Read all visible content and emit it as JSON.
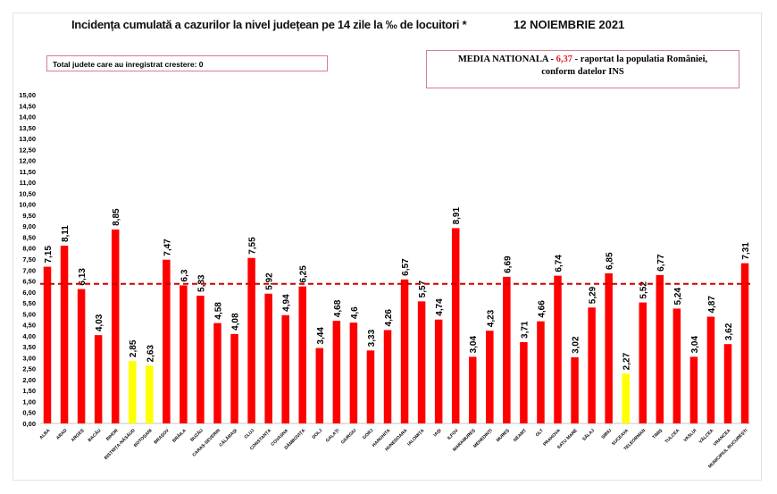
{
  "chart_data": {
    "type": "bar",
    "title": "Incidența cumulată a cazurilor la nivel județean pe 14 zile la ‰ de locuitori *",
    "date": "12 NOIEMBRIE 2021",
    "note": "Total judete care au inregistrat crestere: 0",
    "average_box": {
      "prefix": "MEDIA NATIONALA - ",
      "value": "6,37",
      "suffix": " -  raportat la populatia României,",
      "line2": "conform datelor INS"
    },
    "average_line": 6.37,
    "ylim": [
      0,
      15
    ],
    "ytick_step": 0.5,
    "grid": false,
    "colors": {
      "bar": "#ff0000",
      "highlight": "#ffff00",
      "average_line": "#d00000"
    },
    "categories": [
      "ALBA",
      "ARAD",
      "ARGEȘ",
      "BACĂU",
      "BIHOR",
      "BISTRIȚA-NĂSĂUD",
      "BOTOȘANI",
      "BRAȘOV",
      "BRĂILA",
      "BUZĂU",
      "CARAȘ-SEVERIN",
      "CĂLĂRAȘI",
      "CLUJ",
      "CONSTANȚA",
      "COVASNA",
      "DÂMBOVIȚA",
      "DOLJ",
      "GALAȚI",
      "GIURGIU",
      "GORJ",
      "HARGHITA",
      "HUNEDOARA",
      "IALOMIȚA",
      "IAȘI",
      "ILFOV",
      "MARAMUREȘ",
      "MEHEDINȚI",
      "MUREȘ",
      "NEAMȚ",
      "OLT",
      "PRAHOVA",
      "SATU MARE",
      "SĂLAJ",
      "SIBIU",
      "SUCEAVA",
      "TELEORMAN",
      "TIMIȘ",
      "TULCEA",
      "VASLUI",
      "VÂLCEA",
      "VRANCEA",
      "MUNICIPIUL BUCUREȘTI"
    ],
    "values": [
      7.15,
      8.11,
      6.13,
      4.03,
      8.85,
      2.85,
      2.63,
      7.47,
      6.3,
      5.83,
      4.58,
      4.08,
      7.55,
      5.92,
      4.94,
      6.25,
      3.44,
      4.68,
      4.6,
      3.33,
      4.26,
      6.57,
      5.57,
      4.74,
      8.91,
      3.04,
      4.23,
      6.69,
      3.71,
      4.66,
      6.74,
      3.02,
      5.29,
      6.85,
      2.27,
      5.52,
      6.77,
      5.24,
      3.04,
      4.87,
      3.62,
      7.31
    ],
    "value_labels": [
      "7,15",
      "8,11",
      "6,13",
      "4,03",
      "8,85",
      "2,85",
      "2,63",
      "7,47",
      "6,3",
      "5,83",
      "4,58",
      "4,08",
      "7,55",
      "5,92",
      "4,94",
      "6,25",
      "3,44",
      "4,68",
      "4,6",
      "3,33",
      "4,26",
      "6,57",
      "5,57",
      "4,74",
      "8,91",
      "3,04",
      "4,23",
      "6,69",
      "3,71",
      "4,66",
      "6,74",
      "3,02",
      "5,29",
      "6,85",
      "2,27",
      "5,52",
      "6,77",
      "5,24",
      "3,04",
      "4,87",
      "3,62",
      "7,31"
    ],
    "highlighted": [
      "BISTRIȚA-NĂSĂUD",
      "BOTOȘANI",
      "SUCEAVA"
    ]
  }
}
